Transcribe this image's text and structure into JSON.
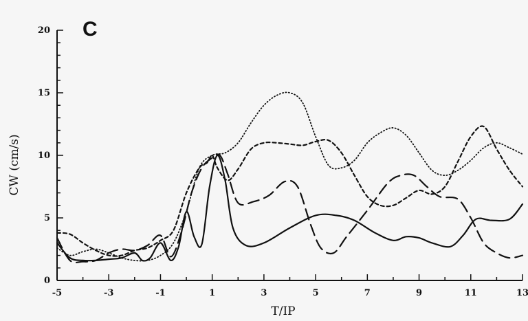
{
  "chart_data": {
    "type": "line",
    "panel_label": "C",
    "xlabel": "T/IP",
    "ylabel": "CW (cm/s)",
    "xlim": [
      -5,
      13
    ],
    "ylim": [
      0,
      20
    ],
    "x_ticks": [
      "-5",
      "-3",
      "-1",
      "1",
      "3",
      "5",
      "7",
      "9",
      "11",
      "13"
    ],
    "y_ticks": [
      "0",
      "5",
      "10",
      "15",
      "20"
    ],
    "grid": false,
    "series": [
      {
        "style": "solid",
        "x": [
          -5,
          -4.5,
          -4,
          -3.5,
          -3,
          -2.5,
          -2,
          -1.7,
          -1.4,
          -1.0,
          -0.6,
          -0.3,
          0.0,
          0.3,
          0.6,
          0.9,
          1.2,
          1.5,
          1.8,
          2.3,
          3.0,
          4.0,
          5.0,
          5.8,
          6.5,
          7.3,
          8.0,
          8.5,
          9.0,
          9.5,
          10.2,
          10.7,
          11.2,
          11.8,
          12.5,
          13.0
        ],
        "y": [
          3.0,
          1.8,
          1.6,
          1.6,
          1.7,
          1.8,
          2.2,
          1.6,
          1.8,
          3.0,
          1.6,
          2.7,
          5.5,
          3.5,
          2.9,
          7.5,
          10.0,
          8.0,
          4.2,
          2.8,
          3.0,
          4.2,
          5.2,
          5.2,
          4.8,
          3.8,
          3.2,
          3.5,
          3.4,
          3.0,
          2.7,
          3.6,
          4.9,
          4.8,
          4.9,
          6.1
        ]
      },
      {
        "style": "dashed",
        "x": [
          -5,
          -4.5,
          -4,
          -3.5,
          -3,
          -2.5,
          -2,
          -1.5,
          -1.0,
          -0.6,
          -0.2,
          0.2,
          0.6,
          1.0,
          1.3,
          1.6,
          2.0,
          2.6,
          3.2,
          3.8,
          4.3,
          4.8,
          5.2,
          5.7,
          6.2,
          7.0,
          7.8,
          8.3,
          8.8,
          9.3,
          9.8,
          10.5,
          11.0,
          11.5,
          12.0,
          12.5,
          13.0
        ],
        "y": [
          3.4,
          1.6,
          1.5,
          1.6,
          2.2,
          2.5,
          2.4,
          2.8,
          3.6,
          1.9,
          3.8,
          7.0,
          9.0,
          9.8,
          10.0,
          8.5,
          6.2,
          6.3,
          6.8,
          7.9,
          7.5,
          4.5,
          2.6,
          2.2,
          3.5,
          5.6,
          7.8,
          8.4,
          8.4,
          7.5,
          6.7,
          6.5,
          5.0,
          3.0,
          2.2,
          1.8,
          2.0
        ]
      },
      {
        "style": "short-dashed",
        "x": [
          -5,
          -4.5,
          -4,
          -3.5,
          -3,
          -2.5,
          -2,
          -1.5,
          -1.0,
          -0.5,
          0.0,
          0.5,
          0.8,
          1.0,
          1.2,
          1.6,
          2.0,
          2.5,
          3.0,
          3.5,
          4.0,
          4.5,
          5.0,
          5.5,
          6.0,
          6.5,
          7.0,
          7.5,
          8.0,
          8.5,
          9.0,
          9.5,
          10.0,
          10.5,
          11.0,
          11.5,
          12.0,
          12.5,
          13.0
        ],
        "y": [
          3.8,
          3.7,
          3.0,
          2.4,
          2.0,
          2.0,
          2.4,
          2.6,
          3.2,
          4.0,
          7.0,
          9.0,
          9.4,
          10.0,
          9.0,
          8.0,
          8.9,
          10.5,
          11.0,
          11.0,
          10.9,
          10.8,
          11.1,
          11.2,
          10.2,
          8.4,
          6.7,
          6.0,
          6.0,
          6.6,
          7.2,
          6.9,
          7.5,
          9.5,
          11.5,
          12.3,
          10.5,
          8.8,
          7.5
        ]
      },
      {
        "style": "dotted",
        "x": [
          -5,
          -4.5,
          -4,
          -3.5,
          -3,
          -2.5,
          -2,
          -1.5,
          -1.0,
          -0.5,
          0.0,
          0.5,
          1.0,
          1.5,
          2.0,
          2.5,
          3.0,
          3.5,
          4.0,
          4.5,
          5.0,
          5.5,
          6.0,
          6.5,
          7.0,
          7.5,
          8.0,
          8.5,
          9.0,
          9.5,
          10.0,
          10.5,
          11.0,
          11.5,
          12.0,
          12.5,
          13.0
        ],
        "y": [
          2.6,
          2.0,
          2.3,
          2.5,
          2.2,
          1.8,
          1.6,
          1.6,
          2.0,
          3.0,
          5.5,
          9.0,
          10.0,
          10.2,
          11.0,
          12.6,
          14.0,
          14.8,
          15.0,
          14.2,
          11.5,
          9.2,
          9.0,
          9.6,
          11.0,
          11.8,
          12.2,
          11.6,
          10.2,
          8.8,
          8.4,
          8.8,
          9.6,
          10.6,
          11.0,
          10.6,
          10.1
        ]
      }
    ]
  }
}
